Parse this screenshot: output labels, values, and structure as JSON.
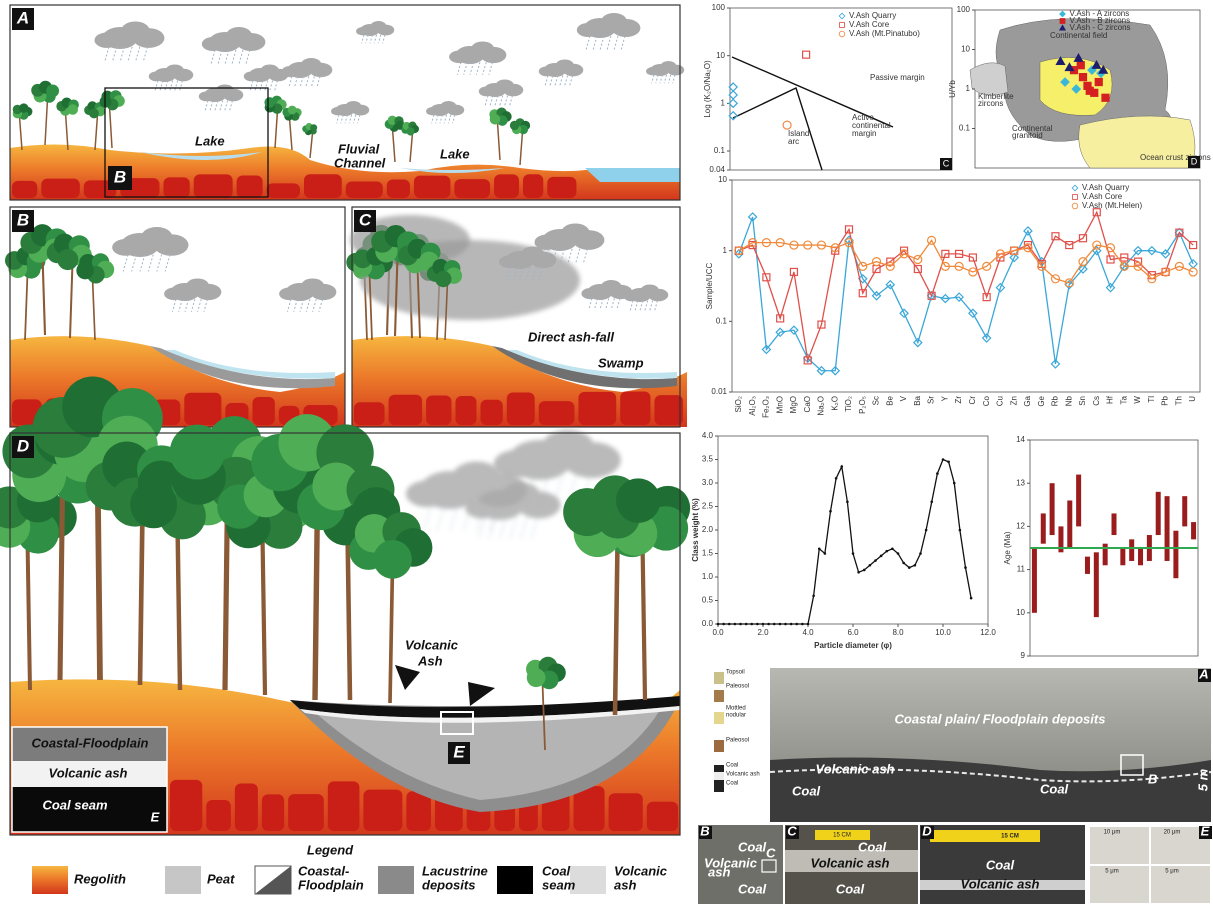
{
  "illustration": {
    "panel_a": {
      "label": "A",
      "inset": "B",
      "lake_1": "Lake",
      "channel": [
        "Fluvial",
        "Channel"
      ],
      "lake_2": "Lake"
    },
    "panel_b": {
      "label": "B"
    },
    "panel_c": {
      "label": "C",
      "ash_fall": "Direct ash-fall",
      "swamp": "Swamp"
    },
    "panel_d": {
      "label": "D",
      "ash": [
        "Volcanic",
        "Ash"
      ],
      "inset": "E",
      "inset_layers": [
        "Coastal-Floodplain",
        "Volcanic ash",
        "Coal seam"
      ],
      "inset_label": "E"
    },
    "legend": {
      "title": "Legend",
      "items": [
        [
          "Regolith"
        ],
        [
          "Peat"
        ],
        [
          "Coastal-",
          "Floodplain"
        ],
        [
          "Lacustrine",
          "deposits"
        ],
        [
          "Coal",
          "seam"
        ],
        [
          "Volcanic",
          "ash"
        ]
      ]
    }
  },
  "chart_data": [
    {
      "type": "scatter",
      "panel_label": "C",
      "ylabel": "Log (K₂O/Na₂O)",
      "log_y": true,
      "ylim": [
        0.04,
        100
      ],
      "yticks": [
        0.04,
        0.1,
        1,
        10,
        100
      ],
      "xlim": [
        45,
        80
      ],
      "legend": "top-right",
      "annotations": [
        "Passive margin",
        "Active",
        "continental",
        "margin",
        "Island",
        "arc"
      ],
      "series": [
        {
          "name": "V.Ash Quarry",
          "color": "#3aa7d8",
          "marker": "diamond",
          "x": [
            45.5,
            45.5,
            45.5,
            45.5
          ],
          "values": [
            2.2,
            1.5,
            1.0,
            0.55
          ]
        },
        {
          "name": "V.Ash Core",
          "color": "#e0504a",
          "marker": "square",
          "x": [
            57
          ],
          "values": [
            10.5
          ]
        },
        {
          "name": "V.Ash (Mt.Pinatubo)",
          "color": "#f08a4b",
          "marker": "circle",
          "x": [
            54
          ],
          "values": [
            0.35
          ]
        }
      ]
    },
    {
      "type": "scatter",
      "panel_label": "D",
      "ylabel": "U/Yb",
      "log_y": true,
      "ylim": [
        0.01,
        100
      ],
      "yticks": [
        0.1,
        1,
        10,
        100
      ],
      "xlim": [
        0,
        100
      ],
      "legend": "top",
      "annotations": [
        "Continental field",
        "Kimberlite",
        "zircons",
        "Continental",
        "granitoid",
        "Ocean crust zircons"
      ],
      "series": [
        {
          "name": "V.Ash - A zircons",
          "color": "#3ab7d8",
          "marker": "diamond",
          "x": [
            40,
            52,
            56,
            45
          ],
          "values": [
            1.5,
            3,
            2.5,
            1
          ]
        },
        {
          "name": "V.Ash - B zircons",
          "color": "#d42020",
          "marker": "square",
          "x": [
            44,
            48,
            50,
            53,
            55,
            58,
            47,
            51
          ],
          "values": [
            3,
            2,
            1.2,
            0.8,
            1.5,
            0.6,
            4,
            0.9
          ]
        },
        {
          "name": "V.Ash - C zircons",
          "color": "#1d1d6e",
          "marker": "triangle",
          "x": [
            38,
            46,
            54,
            57,
            42
          ],
          "values": [
            5,
            6,
            4,
            3,
            3.5
          ]
        }
      ]
    },
    {
      "type": "line",
      "ylabel": "Sample/UCC",
      "log_y": true,
      "ylim": [
        0.01,
        10
      ],
      "yticks": [
        0.01,
        0.1,
        1,
        10
      ],
      "legend": "top-right",
      "categories": [
        "SiO₂",
        "Al₂O₃",
        "Fe₂O₃",
        "MnO",
        "MgO",
        "CaO",
        "Na₂O",
        "K₂O",
        "TiO₂",
        "P₂O₅",
        "Sc",
        "Be",
        "V",
        "Ba",
        "Sr",
        "Y",
        "Zr",
        "Cr",
        "Co",
        "Cu",
        "Zn",
        "Ga",
        "Ge",
        "Rb",
        "Nb",
        "Sn",
        "Cs",
        "Hf",
        "Ta",
        "W",
        "Tl",
        "Pb",
        "Th",
        "U"
      ],
      "series": [
        {
          "name": "V.Ash Quarry",
          "color": "#3aa7d8",
          "marker": "diamond",
          "values": [
            0.9,
            3.0,
            0.04,
            0.07,
            0.075,
            0.03,
            0.02,
            0.02,
            1.4,
            0.4,
            0.23,
            0.33,
            0.13,
            0.05,
            0.23,
            0.21,
            0.22,
            0.13,
            0.058,
            0.3,
            0.8,
            1.9,
            0.7,
            0.025,
            0.33,
            0.55,
            1.0,
            0.3,
            0.6,
            1.0,
            1.0,
            0.9,
            1.8,
            0.65
          ]
        },
        {
          "name": "V.Ash Core",
          "color": "#e0504a",
          "marker": "square",
          "values": [
            1.0,
            1.2,
            0.42,
            0.11,
            0.5,
            0.028,
            0.09,
            1.0,
            2.0,
            0.25,
            0.55,
            0.7,
            1.0,
            0.55,
            0.23,
            0.9,
            0.9,
            0.8,
            0.22,
            0.8,
            1.0,
            1.2,
            0.65,
            1.6,
            1.2,
            1.5,
            3.5,
            0.75,
            0.8,
            0.7,
            0.45,
            0.5,
            1.8,
            1.2
          ]
        },
        {
          "name": "V.Ash (Mt.Helen)",
          "color": "#f08a3b",
          "marker": "circle",
          "values": [
            1.0,
            1.3,
            1.3,
            1.3,
            1.2,
            1.2,
            1.2,
            1.1,
            1.3,
            0.6,
            0.7,
            0.6,
            0.9,
            0.75,
            1.4,
            0.6,
            0.6,
            0.5,
            0.6,
            0.9,
            1.0,
            1.1,
            0.6,
            0.4,
            0.35,
            0.7,
            1.2,
            1.1,
            0.6,
            0.6,
            0.4,
            0.5,
            0.6,
            0.5
          ]
        }
      ]
    },
    {
      "type": "line",
      "xlabel": "Particle diameter (φ)",
      "ylabel": "Class weight (%)",
      "color": "#111111",
      "marker": "dot",
      "x": [
        0,
        0.25,
        0.5,
        0.75,
        1,
        1.25,
        1.5,
        1.75,
        2,
        2.25,
        2.5,
        2.75,
        3,
        3.25,
        3.5,
        3.75,
        4,
        4.25,
        4.5,
        4.75,
        5,
        5.25,
        5.5,
        5.75,
        6,
        6.25,
        6.5,
        6.75,
        7,
        7.25,
        7.5,
        7.75,
        8,
        8.25,
        8.5,
        8.75,
        9,
        9.25,
        9.5,
        9.75,
        10,
        10.25,
        10.5,
        10.75,
        11,
        11.25
      ],
      "values": [
        0,
        0,
        0,
        0,
        0,
        0,
        0,
        0,
        0,
        0,
        0,
        0,
        0,
        0,
        0,
        0,
        0,
        0.6,
        1.6,
        1.5,
        2.4,
        3.1,
        3.35,
        2.6,
        1.5,
        1.1,
        1.15,
        1.25,
        1.35,
        1.45,
        1.55,
        1.6,
        1.5,
        1.3,
        1.2,
        1.25,
        1.5,
        2.0,
        2.6,
        3.2,
        3.5,
        3.45,
        3.0,
        2.0,
        1.2,
        0.55
      ],
      "xlim": [
        0,
        12
      ],
      "ylim": [
        0,
        4
      ],
      "xticks": [
        {
          "value": 0,
          "label": "0.0"
        },
        {
          "value": 2,
          "label": "2.0"
        },
        {
          "value": 4,
          "label": "4.0"
        },
        {
          "value": 6,
          "label": "6.0"
        },
        {
          "value": 8,
          "label": "8.0"
        },
        {
          "value": 10,
          "label": "10.0"
        },
        {
          "value": 12,
          "label": "12.0"
        }
      ],
      "yticks": [
        {
          "value": 0,
          "label": "0.0"
        },
        0.5,
        {
          "value": 1,
          "label": "1.0"
        },
        1.5,
        {
          "value": 2,
          "label": "2.0"
        },
        2.5,
        {
          "value": 3,
          "label": "3.0"
        },
        3.5,
        {
          "value": 4,
          "label": "4.0"
        }
      ]
    },
    {
      "type": "range",
      "ylabel": "Age (Ma)",
      "ylim": [
        9,
        14
      ],
      "yticks": [
        9,
        10,
        11,
        12,
        13,
        14
      ],
      "color": "#9b1c1c",
      "reference": 11.5,
      "reference_color": "#2fa84f",
      "low": [
        10.0,
        11.6,
        11.8,
        11.4,
        11.5,
        12.0,
        10.9,
        9.9,
        11.1,
        11.8,
        11.1,
        11.2,
        11.1,
        11.2,
        11.8,
        11.2,
        10.8,
        12.0,
        11.7
      ],
      "high": [
        11.5,
        12.3,
        13.0,
        12.0,
        12.6,
        13.2,
        11.3,
        11.4,
        11.6,
        12.3,
        11.5,
        11.7,
        11.5,
        11.8,
        12.8,
        12.7,
        11.9,
        12.7,
        12.1
      ]
    }
  ],
  "photos": {
    "a": {
      "label": "A",
      "log": [
        "Topsoil",
        "Paleosol",
        "Mottled",
        "nodular",
        "Paleosol",
        "Coal",
        "Volcanic ash",
        "Coal"
      ],
      "deposits": "Coastal plain/ Floodplain deposits",
      "ash": "Volcanic ash",
      "coal_1": "Coal",
      "coal_2": "Coal",
      "inset": "B",
      "scale": "5 m"
    },
    "b": {
      "label": "B",
      "coal_1": "Coal",
      "ash": [
        "Volcanic",
        "ash"
      ],
      "inset": "C",
      "coal_2": "Coal"
    },
    "c": {
      "label": "C",
      "coal_1": "Coal",
      "scale": "15 CM",
      "ash": "Volcanic ash",
      "coal_2": "Coal"
    },
    "d": {
      "label": "D",
      "scale": "15 CM",
      "coal": "Coal",
      "ash": "Volcanic ash"
    },
    "e": {
      "label": "E",
      "scales": [
        "10 μm",
        "20 μm",
        "5 μm",
        "5 μm"
      ]
    }
  }
}
